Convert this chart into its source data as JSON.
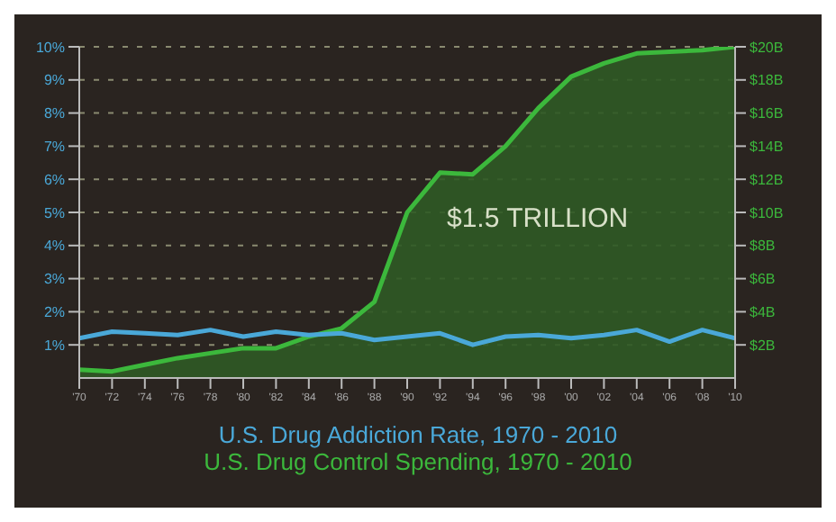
{
  "chart_data": {
    "type": "line",
    "x": [
      1970,
      1972,
      1974,
      1976,
      1978,
      1980,
      1982,
      1984,
      1986,
      1988,
      1990,
      1992,
      1994,
      1996,
      1998,
      2000,
      2002,
      2004,
      2006,
      2008,
      2010
    ],
    "series": [
      {
        "name": "U.S. Drug Addiction Rate, 1970 - 2010",
        "color": "#4aa8d8",
        "values": [
          1.2,
          1.4,
          1.35,
          1.3,
          1.45,
          1.25,
          1.4,
          1.3,
          1.35,
          1.15,
          1.25,
          1.35,
          1.0,
          1.25,
          1.3,
          1.2,
          1.3,
          1.45,
          1.1,
          1.45,
          1.2
        ]
      },
      {
        "name": "U.S. Drug Control Spending, 1970 - 2010",
        "color": "#3cb83c",
        "type": "area",
        "axis": "y2",
        "values": [
          0.5,
          0.4,
          0.8,
          1.2,
          1.5,
          1.8,
          1.8,
          2.5,
          3,
          4.6,
          10,
          12.4,
          12.3,
          14,
          16.3,
          18.2,
          19,
          19.6,
          19.7,
          19.8,
          20
        ]
      }
    ],
    "xlim": [
      1970,
      2010
    ],
    "xticks": [
      {
        "value": 1970,
        "label": "'70"
      },
      {
        "value": 1972,
        "label": "'72"
      },
      {
        "value": 1974,
        "label": "'74"
      },
      {
        "value": 1976,
        "label": "'76"
      },
      {
        "value": 1978,
        "label": "'78"
      },
      {
        "value": 1980,
        "label": "'80"
      },
      {
        "value": 1982,
        "label": "'82"
      },
      {
        "value": 1984,
        "label": "'84"
      },
      {
        "value": 1986,
        "label": "'86"
      },
      {
        "value": 1988,
        "label": "'88"
      },
      {
        "value": 1990,
        "label": "'90"
      },
      {
        "value": 1992,
        "label": "'92"
      },
      {
        "value": 1994,
        "label": "'94"
      },
      {
        "value": 1996,
        "label": "'96"
      },
      {
        "value": 1998,
        "label": "'98"
      },
      {
        "value": 2000,
        "label": "'00"
      },
      {
        "value": 2002,
        "label": "'02"
      },
      {
        "value": 2004,
        "label": "'04"
      },
      {
        "value": 2006,
        "label": "'06"
      },
      {
        "value": 2008,
        "label": "'08"
      },
      {
        "value": 2010,
        "label": "'10"
      }
    ],
    "ylim": [
      0,
      10
    ],
    "yticks": [
      {
        "value": 1,
        "label": "1%"
      },
      {
        "value": 2,
        "label": "2%"
      },
      {
        "value": 3,
        "label": "3%"
      },
      {
        "value": 4,
        "label": "4%"
      },
      {
        "value": 5,
        "label": "5%"
      },
      {
        "value": 6,
        "label": "6%"
      },
      {
        "value": 7,
        "label": "7%"
      },
      {
        "value": 8,
        "label": "8%"
      },
      {
        "value": 9,
        "label": "9%"
      },
      {
        "value": 10,
        "label": "10%"
      }
    ],
    "y2lim": [
      0,
      20
    ],
    "y2ticks": [
      {
        "value": 2,
        "label": "$2B"
      },
      {
        "value": 4,
        "label": "$4B"
      },
      {
        "value": 6,
        "label": "$6B"
      },
      {
        "value": 8,
        "label": "$8B"
      },
      {
        "value": 10,
        "label": "$10B"
      },
      {
        "value": 12,
        "label": "$12B"
      },
      {
        "value": 14,
        "label": "$14B"
      },
      {
        "value": 16,
        "label": "$16B"
      },
      {
        "value": 18,
        "label": "$18B"
      },
      {
        "value": 20,
        "label": "$20B"
      }
    ],
    "grid": "y",
    "legend": "bottom",
    "marker": "none",
    "line_style": "solid",
    "annotations": [
      "$1.5 TRILLION"
    ]
  }
}
